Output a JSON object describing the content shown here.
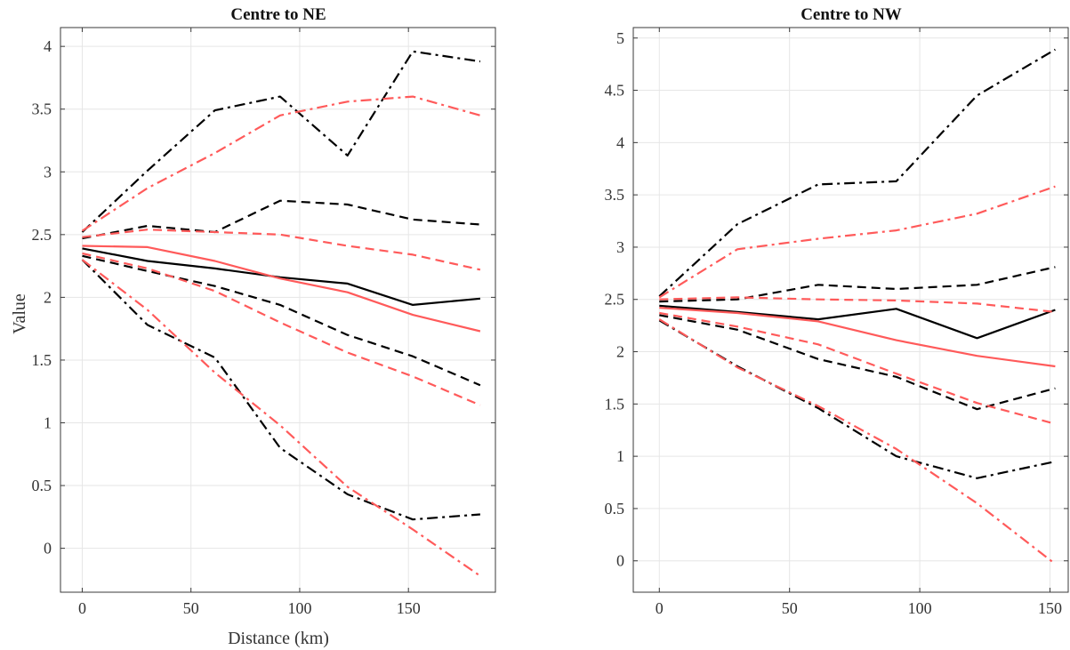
{
  "chart_data": [
    {
      "type": "line",
      "title": "Centre to NE",
      "xlabel": "Distance (km)",
      "ylabel": "Value",
      "xlim": [
        -10,
        190
      ],
      "ylim": [
        -0.35,
        4.15
      ],
      "xticks": [
        0,
        50,
        100,
        150
      ],
      "yticks": [
        0,
        0.5,
        1,
        1.5,
        2,
        2.5,
        3,
        3.5,
        4
      ],
      "ytick_labels": [
        "0",
        "0.5",
        "1",
        "1.5",
        "2",
        "2.5",
        "3",
        "3.5",
        "4"
      ],
      "grid": true,
      "series": [
        {
          "color": "#000000",
          "style": "solid",
          "x": [
            0,
            30,
            61,
            91,
            122,
            152,
            183
          ],
          "y": [
            2.39,
            2.29,
            2.23,
            2.16,
            2.11,
            1.94,
            1.99
          ]
        },
        {
          "color": "#ff5a5a",
          "style": "solid",
          "x": [
            0,
            30,
            61,
            91,
            122,
            152,
            183
          ],
          "y": [
            2.41,
            2.4,
            2.29,
            2.15,
            2.04,
            1.86,
            1.73
          ]
        },
        {
          "color": "#000000",
          "style": "dashed",
          "x": [
            0,
            30,
            61,
            91,
            122,
            152,
            183
          ],
          "y": [
            2.47,
            2.57,
            2.52,
            2.77,
            2.74,
            2.62,
            2.58
          ]
        },
        {
          "color": "#000000",
          "style": "dashed",
          "x": [
            0,
            30,
            61,
            91,
            122,
            152,
            183
          ],
          "y": [
            2.33,
            2.21,
            2.09,
            1.94,
            1.7,
            1.53,
            1.3
          ]
        },
        {
          "color": "#ff5a5a",
          "style": "dashed",
          "x": [
            0,
            30,
            61,
            91,
            122,
            152,
            183
          ],
          "y": [
            2.48,
            2.54,
            2.52,
            2.5,
            2.41,
            2.34,
            2.22
          ]
        },
        {
          "color": "#ff5a5a",
          "style": "dashed",
          "x": [
            0,
            30,
            61,
            91,
            122,
            152,
            183
          ],
          "y": [
            2.35,
            2.23,
            2.05,
            1.8,
            1.56,
            1.37,
            1.14
          ]
        },
        {
          "color": "#000000",
          "style": "dashdot",
          "x": [
            0,
            30,
            61,
            91,
            122,
            152,
            183
          ],
          "y": [
            2.52,
            3.01,
            3.49,
            3.6,
            3.13,
            3.96,
            3.88
          ]
        },
        {
          "color": "#000000",
          "style": "dashdot",
          "x": [
            0,
            30,
            61,
            91,
            122,
            152,
            183
          ],
          "y": [
            2.3,
            1.78,
            1.52,
            0.8,
            0.43,
            0.23,
            0.27
          ]
        },
        {
          "color": "#ff5a5a",
          "style": "dashdot",
          "x": [
            0,
            30,
            61,
            91,
            122,
            152,
            183
          ],
          "y": [
            2.53,
            2.87,
            3.15,
            3.45,
            3.56,
            3.6,
            3.45
          ]
        },
        {
          "color": "#ff5a5a",
          "style": "dashdot",
          "x": [
            0,
            30,
            61,
            91,
            122,
            152,
            183
          ],
          "y": [
            2.3,
            1.9,
            1.4,
            0.98,
            0.49,
            0.15,
            -0.22
          ]
        }
      ]
    },
    {
      "type": "line",
      "title": "Centre to NW",
      "xlabel": "",
      "ylabel": "",
      "xlim": [
        -10,
        157
      ],
      "ylim": [
        -0.3,
        5.1
      ],
      "xticks": [
        0,
        50,
        100,
        150
      ],
      "yticks": [
        0,
        0.5,
        1,
        1.5,
        2,
        2.5,
        3,
        3.5,
        4,
        4.5,
        5
      ],
      "ytick_labels": [
        "0",
        "0.5",
        "1",
        "1.5",
        "2",
        "2.5",
        "3",
        "3.5",
        "4",
        "4.5",
        "5"
      ],
      "grid": true,
      "series": [
        {
          "color": "#000000",
          "style": "solid",
          "x": [
            0,
            30,
            61,
            91,
            122,
            152
          ],
          "y": [
            2.44,
            2.38,
            2.31,
            2.41,
            2.13,
            2.4
          ]
        },
        {
          "color": "#ff5a5a",
          "style": "solid",
          "x": [
            0,
            30,
            61,
            91,
            122,
            152
          ],
          "y": [
            2.42,
            2.37,
            2.29,
            2.11,
            1.96,
            1.86
          ]
        },
        {
          "color": "#000000",
          "style": "dashed",
          "x": [
            0,
            30,
            61,
            91,
            122,
            152
          ],
          "y": [
            2.48,
            2.5,
            2.64,
            2.6,
            2.64,
            2.81
          ]
        },
        {
          "color": "#000000",
          "style": "dashed",
          "x": [
            0,
            30,
            61,
            91,
            122,
            152
          ],
          "y": [
            2.35,
            2.21,
            1.93,
            1.76,
            1.45,
            1.65
          ]
        },
        {
          "color": "#ff5a5a",
          "style": "dashed",
          "x": [
            0,
            30,
            61,
            91,
            122,
            152
          ],
          "y": [
            2.5,
            2.52,
            2.5,
            2.49,
            2.46,
            2.38
          ]
        },
        {
          "color": "#ff5a5a",
          "style": "dashed",
          "x": [
            0,
            30,
            61,
            91,
            122,
            152
          ],
          "y": [
            2.37,
            2.24,
            2.07,
            1.79,
            1.51,
            1.31
          ]
        },
        {
          "color": "#000000",
          "style": "dashdot",
          "x": [
            0,
            30,
            61,
            91,
            122,
            152
          ],
          "y": [
            2.53,
            3.22,
            3.6,
            3.63,
            4.45,
            4.89
          ]
        },
        {
          "color": "#000000",
          "style": "dashdot",
          "x": [
            0,
            30,
            61,
            91,
            122,
            152
          ],
          "y": [
            2.3,
            1.86,
            1.46,
            1.0,
            0.79,
            0.95
          ]
        },
        {
          "color": "#ff5a5a",
          "style": "dashdot",
          "x": [
            0,
            30,
            61,
            91,
            122,
            152
          ],
          "y": [
            2.52,
            2.98,
            3.08,
            3.16,
            3.32,
            3.58
          ]
        },
        {
          "color": "#ff5a5a",
          "style": "dashdot",
          "x": [
            0,
            30,
            61,
            91,
            122,
            152
          ],
          "y": [
            2.31,
            1.85,
            1.48,
            1.07,
            0.55,
            -0.03
          ]
        }
      ]
    }
  ]
}
